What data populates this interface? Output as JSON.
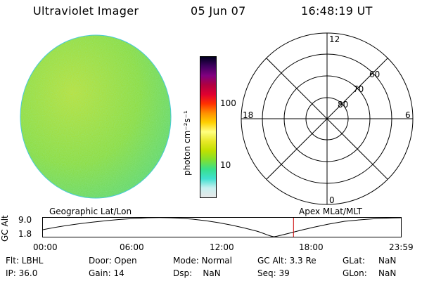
{
  "header": {
    "instrument": "Ultraviolet Imager",
    "date": "05 Jun 07",
    "time": "16:48:19 UT"
  },
  "colorbar": {
    "unit_label": "photon cm⁻²s⁻¹",
    "tick_100": "100",
    "tick_10": "10",
    "colors": [
      "#e8e8e8",
      "#c8f0f0",
      "#40e0d0",
      "#38e08c",
      "#80e030",
      "#c0e000",
      "#e8e828",
      "#ffff80",
      "#ffd000",
      "#ff9000",
      "#ff3000",
      "#e00030",
      "#b00040",
      "#800080",
      "#400060",
      "#000020"
    ]
  },
  "polar_plot": {
    "mlt_labels": {
      "top": "12",
      "left": "18",
      "right": "6",
      "bottom": "0"
    },
    "lat_labels": [
      "80",
      "70",
      "60"
    ]
  },
  "timeline": {
    "left_label": "Geographic Lat/Lon",
    "right_label": "Apex  MLat/MLT",
    "yaxis_title": "GC Alt",
    "y_ticks": [
      "9.0",
      "1.8"
    ],
    "x_ticks": [
      "00:00",
      "06:00",
      "12:00",
      "18:00",
      "23:59"
    ],
    "current_time_hours": 16.8,
    "marker_color": "#cc0000"
  },
  "status": {
    "filter": "Flt: LBHL",
    "ip": "IP: 36.0",
    "door": "Door: Open",
    "gain": "Gain: 14",
    "mode": "Mode: Normal",
    "dsp": "Dsp:    NaN",
    "gc_alt": "GC Alt: 3.3 Re",
    "seq": "Seq: 39",
    "glat_label": "GLat:",
    "glat_value": "NaN",
    "glon_label": "GLon:",
    "glon_value": "NaN"
  }
}
